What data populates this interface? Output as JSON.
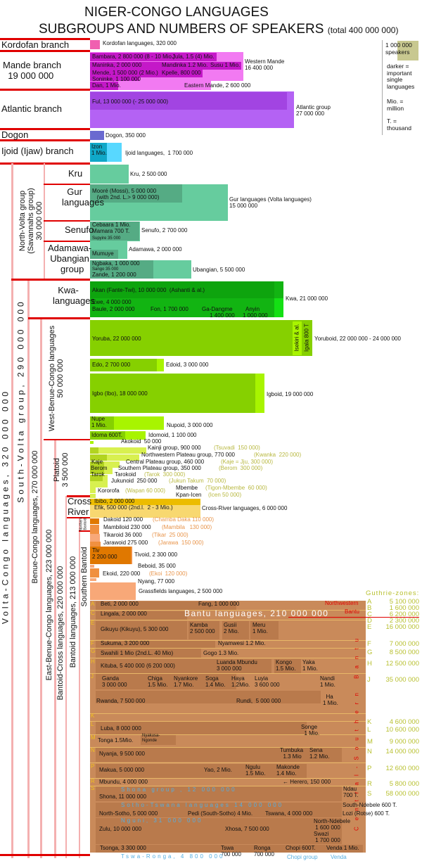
{
  "title": {
    "line1": "NIGER-CONGO LANGUAGES",
    "line2": "SUBGROUPS AND NUMBERS OF SPEAKERS",
    "total": "(total 400 000 000)"
  },
  "legend": {
    "sample": "1 000 000\nspeakers",
    "darker": "darker =\nimportant\nsingle\nlanguages",
    "mio": "Mio. =\nmillion",
    "t": "T. =\nthousand"
  },
  "groups": {
    "kordofan": "Kordofan branch",
    "mande": "Mande branch\n  19 000 000",
    "atlantic": "Atlantic branch",
    "dogon": "Dogon",
    "ijoid": "Ijoid (Ijaw) branch",
    "kru": "Kru",
    "gur": "  Gur\nlanguages",
    "senufo": "Senufo",
    "adamawa": "Adamawa-\nUbangian\n  group",
    "kwa": "  Kwa-\nlanguages",
    "volta_congo": "Volta-Congo languages, 320 000 000",
    "north_volta": "North-Volta group\n(Savannahs group)\n30 000 000",
    "south_volta": "South-Volta group, 290 000 000",
    "benue_congo": "Benue-Congo languages, 270 000 000",
    "west_benue": "West-Benue-Congo languages\n50 000 000",
    "east_benue": "East-Benue-Congo languages, 223 000 000",
    "bantoid_cross": "Bantoid-Cross languages, 220 000 000",
    "bantoid": "Bantoid languages, 213 000 000",
    "southern_bantoid": "Southern Bantoid",
    "platoid": "Platoid\n3 500 000",
    "cross_river": "Cross\nRiver",
    "northern_bantoid": "Northern\nBantoid"
  },
  "labels": {
    "kordofan": "Kordofan languages, 320 000",
    "bambara": "Bambara, 2 800 000 (8 - 10 Mio.)",
    "jula": "Jula, 1.5 (4) Mio.",
    "maninka": "Maninka, 2 000 000",
    "mandinka": "Mandinka 1.2 Mio.",
    "susu": "Susu 1 Mio.",
    "mende": "Mende, 1 500 000 (2 Mio.)",
    "kpelle": "Kpelle, 800 000",
    "soninke": "Soninke, 1 100 000",
    "dan": "Dan, 1 Mio.",
    "western_mande": "Western Mande\n16 400 000",
    "eastern_mande": "Eastern Mande, 2 600 000",
    "ful": "Ful, 13 000 000 (- 25 000 000)",
    "atlantic": "Atlantic group\n27 000 000",
    "dogon": "Dogon, 350 000",
    "izon": "Izon\n1 Mio.",
    "ijoid": "Ijoid languages,  1 700 000",
    "kru": "Kru, 2 500 000",
    "moore": "Mooré (Mossi), 5 000 000\n   (with 2nd. L.> 9 000 000)",
    "gur": "Gur languages (Volta languages)\n15 000 000",
    "senufo_inner": "Cebaara 1 Mio.\nMamara 700 T.",
    "supyire": "Supyire 35 000",
    "senufo": "Senufo, 2 700 000",
    "mumuye": "Mumuye",
    "adamawa": "Adamawa, 2 000 000",
    "ngbaka": "Ngbaka, 1 000 000",
    "sango": "Sango 35 000",
    "zande": "Zande, 1 200 000",
    "ubangian": "Ubangian, 5 500 000",
    "akan": "Akan (Fante-Twi), 10 000 000  (Ashanti & al.)",
    "ewe": "Ewe, 4 000 000",
    "baule": "Baule, 2 000 000",
    "fon": "Fon, 1 700 000",
    "ga": "Ga-Dangme\n     1 400 000",
    "anyin": "  Anyin\n1 000 000",
    "kwa": "Kwa, 21 000 000",
    "yoruba": "Yoruba, 22 000 000",
    "isekiri": "Isekiri & al.",
    "igala": "Igala 800 T",
    "yoruboid": "Yoruboid, 22 000 000 - 24 000 000",
    "edo": "Edo, 2 700 000",
    "edoid": "Edoid, 3 000 000",
    "igbo": "Igbo (Ibo), 18 000 000",
    "igboid": "Igboid, 19 000 000",
    "nupe": "Nupe\n1 Mio.",
    "nupoid": "Nupoid, 3 000 000",
    "idoma": "Idoma 600T.",
    "idomoid": "Idomoid, 1 100 000",
    "akokoid": "Akokoid  50 000",
    "kainji": "Kainji group, 900 000",
    "kainji_x": "(Tsuvadi  150 000)",
    "nwp": "Northwestern Plateau group, 770 000",
    "nwp_x": "(Kwanka  220 000)",
    "kaje": "Kaje",
    "cp": "Central Plateau group, 460 000",
    "cp_x": "(Kaje = Jju, 300 000)",
    "berom": "Berom",
    "sp": "Southern Plateau group, 350 000",
    "sp_x": "(Berom  300 000)",
    "tarok": "Tarok",
    "tarokoid": "Tarokoid",
    "tarokoid_x": "(Tarok  300 000)",
    "jukunoid": "Jukunoid  250 000",
    "jukunoid_x": "(Jukun Takum  70 000)",
    "kororofa": "Kororofa",
    "kororofa_x": "(Wapan 60 000)",
    "mbembe": "Mbembe",
    "mbembe_x": "(Tigon-Mbembe  60 000)",
    "kpan": "Kpan-Icen",
    "kpan_x": "(Icen 50 000)",
    "ibibo": "Ibibo, 2 000 000",
    "efik": "Efik, 500 000 (2nd.l.  2 - 3 Mio.)",
    "cross": "Cross-River languages, 6 000 000",
    "dakoid": "Dakoid 120 000",
    "dakoid_x": "(Chamba Daka 110 000)",
    "mambiloid": "Mambiloid 230 000",
    "mambiloid_x": "(Mambila   130 000)",
    "tikaroid": "Tikaroid 36 000",
    "tikaroid_x": "(Tikar  25 000)",
    "jarawoid": "Jarawoid 275 000",
    "jarawoid_x": "(Jarawa  150 000)",
    "tiv": "Tiv\n2 200 000",
    "tivoid": "Tivoid, 2 300 000",
    "beboid": "Beboid, 35 000",
    "ekoid": "Ekoid, 220 000",
    "ekoid_x": "(Ekoi  120 000)",
    "nyang": "Nyang, 77 000",
    "grassfields": "Grassfields languages, 2 500 000",
    "bantu": "Bantu languages, 210 000 000",
    "northwestern": "Northwestern",
    "nw_bantu": "Bantu",
    "central_southern": "Central-Southern Bantu",
    "beti": "Beti, 2 000 000",
    "fang": "Fang, 1 000 000",
    "lingala": "Lingala, 2 000 000",
    "gikuyu": "Gikuyu (Kikuyu), 5 300 000",
    "kamba": "Kamba\n2 500 000",
    "gusii": "Gusii\n2 Mio.",
    "meru": "Meru\n1 Mio.",
    "sukuma": "Sukuma, 3 200 000",
    "nyamwesi": "Nyamwesi 1.2 Mio.",
    "swahili": "Swahili 1 Mio (2nd.L. 40 Mio)",
    "gogo": "Gogo 1.3 Mio.",
    "kituba": "Kituba, 5 400 000 (6 200 000)",
    "mbundu_l": "Luanda Mbundu\n3 000 000",
    "kongo": "Kongo\n1.5 Mio.",
    "yaka": "Yaka\n1 Mio.",
    "ganda": "Ganda\n3 000 000",
    "chiga": "Chiga\n1.5 Mio.",
    "nyankore": "Nyankore\n1.7 Mio.",
    "soga": "Soga\n1.4 Mio.",
    "haya": "Haya\n1.2Mio.",
    "luyia": "Luyia\n3 600 000",
    "nandi": "Nandi\n1 Mio.",
    "rwanda": "Rwanda, 7 500 000",
    "rundi": "Rundi,  5 000 000",
    "ha": "  Ha\n1 Mio.",
    "luba": "Luba, 8 000 000",
    "songe": "Songe\n  1 Mio.",
    "tonga": "Tonga 1.5Mio.",
    "nyakusa": "Nyakusa-\nNgonde",
    "nyanja": "Nyanja, 9 500 000",
    "tumbuka": "Tumbuka\n  1.3 Mio",
    "sena": "Sena\n1.2 Mio.",
    "makua": "Makua, 5 000 000",
    "yao": "Yao, 2 Mio.",
    "ngulu": "Ngulu\n1.5 Mio.",
    "makonde": "Makonde\n1.4 Mio.",
    "mbundu": "Mbundu, 4 000 000",
    "herero": "← Herero, 150 000",
    "shona_group": "Shona group , 12 000 000",
    "shona": "Shona, 11 000 000",
    "ndau": "Ndau\n700 T.",
    "sotho_group": "Sotho-Tswana languages 14 000 000",
    "nsotho": "North-Sotho, 5 000 000",
    "pedi": "Pedi (South-Sotho) 4 Mio.",
    "tswana": "Tswana, 4 000 000",
    "sndebele": "South-Ndebele 600 T.",
    "lozi": "Lozi (Rotse) 600 T.",
    "nguni": "Nguni, 31 000 000",
    "zulu": "Zulu, 10 000 000",
    "xhosa": "Xhosa, 7 500 000",
    "nndebele": "North-Ndebele\n 1 600 000",
    "swazi": "Swazi\n 1 700 000",
    "tsonga": "Tsonga, 3 300 000",
    "tswa": "Tswa\n700 000",
    "ronga": "Ronga\n700 000",
    "chopi": "Chopi 600T.",
    "venda": "Venda 1 Mio.",
    "tswa_ronga": "Tswa-Ronga, 4 800 000",
    "chopi_group": "Chopi group",
    "venda_group": "Venda"
  },
  "guthrie": {
    "title": "Guthrie-zones:",
    "zones": [
      {
        "z": "A",
        "n": "5 100 000"
      },
      {
        "z": "B",
        "n": "1 600 000"
      },
      {
        "z": "C",
        "n": "6 200 000"
      },
      {
        "z": "D",
        "n": "2 300 000"
      },
      {
        "z": "E",
        "n": "16 000 000"
      },
      {
        "z": "F",
        "n": "7 000 000"
      },
      {
        "z": "G",
        "n": "8 500 000"
      },
      {
        "z": "H",
        "n": "12 500 000"
      },
      {
        "z": "J",
        "n": "35 000 000"
      },
      {
        "z": "K",
        "n": "4 600 000"
      },
      {
        "z": "L",
        "n": "10 600 000"
      },
      {
        "z": "M",
        "n": "9 000 000"
      },
      {
        "z": "N",
        "n": "14 000 000"
      },
      {
        "z": "P",
        "n": "12 600 000"
      },
      {
        "z": "R",
        "n": "5 800 000"
      },
      {
        "z": "S",
        "n": "58 000 000"
      }
    ]
  },
  "colors": {
    "kord": "#f060b0",
    "mande": "#f27af2",
    "mande_d": "#c418c8",
    "atl": "#b462f4",
    "atl_d": "#a244e2",
    "dogon": "#6a6ad0",
    "ijoid": "#58d8ff",
    "izon": "#10a8c8",
    "green": "#66cc9e",
    "green_d": "#55ab84",
    "kwa": "#12b412",
    "kwa_d": "#0ea40e",
    "kwa_tail": "#14e014",
    "yor": "#86d000",
    "yor_tail": "#a8f400",
    "plat": "#d8f050",
    "plat_d": "#b2d420",
    "cross": "#f8d870",
    "cross_d": "#ecbc00",
    "ben": "#f09040",
    "ben_d": "#e07800",
    "grass": "#f8a878",
    "bantu": "#c98a5a",
    "bantu_d": "#b97a4c",
    "line": "#e8b868",
    "red": "#e00000",
    "pink": "#f4b0b0",
    "sample": "#c8c890"
  }
}
